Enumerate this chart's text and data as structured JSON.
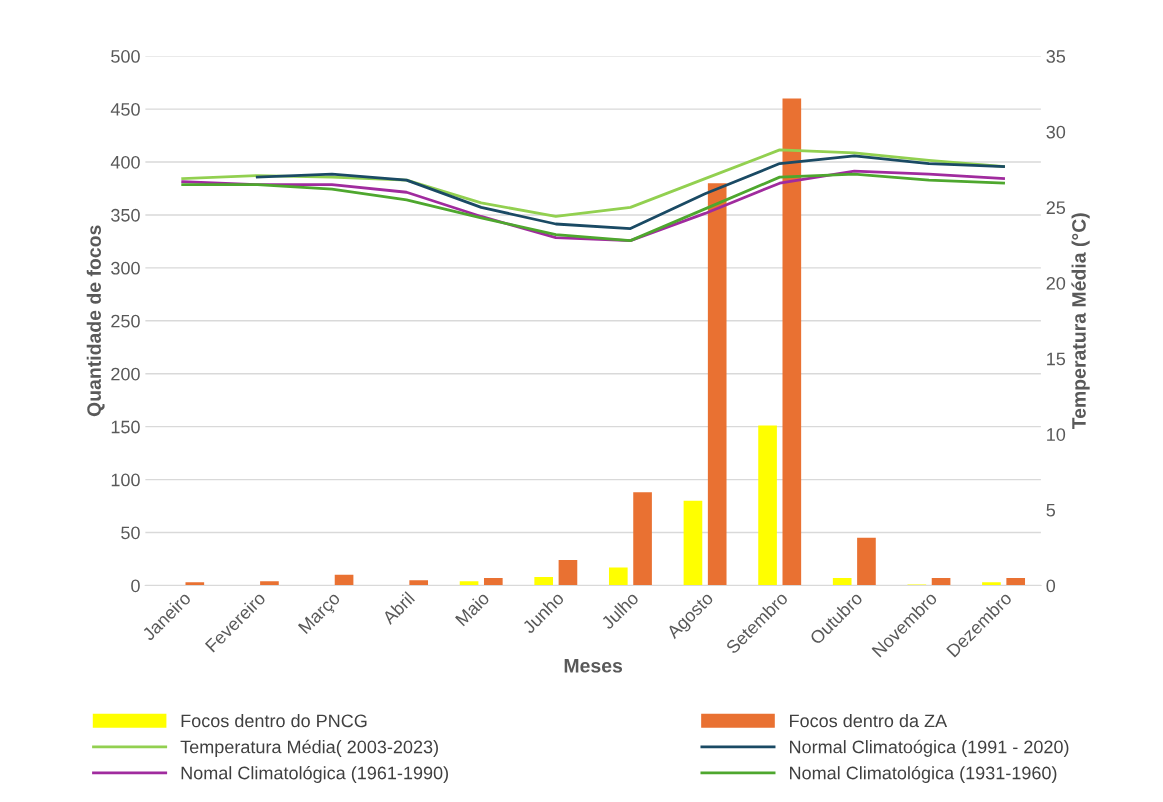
{
  "chart_data": {
    "type": "bar",
    "xlabel": "Meses",
    "ylabel": "Quantidade de focos",
    "y2label": "Temperatura Média (°C)",
    "categories": [
      "Janeiro",
      "Fevereiro",
      "Março",
      "Abril",
      "Maio",
      "Junho",
      "Julho",
      "Agosto",
      "Setembro",
      "Outubro",
      "Novembro",
      "Dezembro"
    ],
    "series": [
      {
        "name": "Focos dentro do PNCG",
        "color": "#ffff00",
        "values": [
          0,
          0,
          0,
          0,
          4,
          8,
          17,
          80,
          151,
          7,
          1,
          3
        ]
      },
      {
        "name": "Focos dentro da ZA",
        "color": "#e97132",
        "values": [
          3,
          4,
          10,
          5,
          7,
          24,
          88,
          380,
          460,
          45,
          7,
          7
        ]
      },
      {
        "name": "Temperatura Média( 2003-2023)",
        "type": "line",
        "axis": "y2",
        "color": "#92d050",
        "values": [
          26.9,
          27.1,
          27.0,
          26.8,
          25.3,
          24.4,
          25.0,
          26.9,
          28.8,
          28.6,
          28.1,
          27.7
        ]
      },
      {
        "name": "Normal Climatoógica (1991 - 2020)",
        "type": "line",
        "axis": "y2",
        "color": "#1a4a64",
        "values": [
          null,
          27.0,
          27.2,
          26.8,
          25.0,
          23.9,
          23.6,
          25.9,
          27.9,
          28.4,
          27.9,
          27.7
        ]
      },
      {
        "name": "Nomal Climatológica (1961-1990)",
        "type": "line",
        "axis": "y2",
        "color": "#a02b9e",
        "values": [
          26.7,
          26.5,
          26.5,
          26.0,
          24.4,
          23.0,
          22.8,
          24.6,
          26.6,
          27.4,
          27.2,
          26.9
        ]
      },
      {
        "name": "Nomal Climatológica (1931-1960)",
        "type": "line",
        "axis": "y2",
        "color": "#4ea72e",
        "values": [
          26.5,
          26.5,
          26.2,
          25.5,
          24.3,
          23.2,
          22.8,
          24.9,
          27.0,
          27.2,
          26.8,
          26.6
        ]
      }
    ],
    "ylim": [
      0,
      500
    ],
    "yticks": [
      0,
      50,
      100,
      150,
      200,
      250,
      300,
      350,
      400,
      450,
      500
    ],
    "y2lim": [
      0,
      35
    ],
    "y2ticks": [
      0,
      5,
      10,
      15,
      20,
      25,
      30,
      35
    ],
    "grid": "y",
    "legend": "bottom"
  }
}
